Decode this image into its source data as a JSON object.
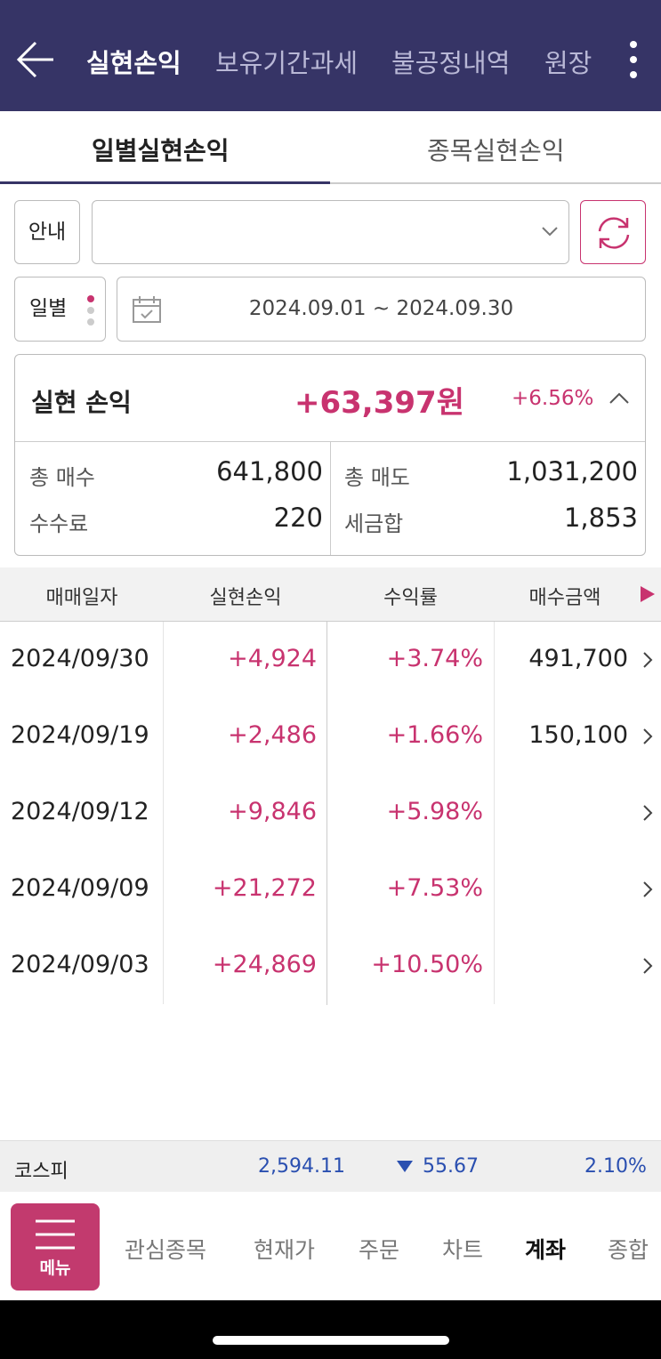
{
  "header": {
    "tabs": [
      "실현손익",
      "보유기간과세",
      "불공정내역",
      "원장"
    ]
  },
  "subtabs": [
    "일별실현손익",
    "종목실현손익"
  ],
  "controls": {
    "guide": "안내",
    "period_type": "일별",
    "date_range": "2024.09.01 ~ 2024.09.30"
  },
  "summary": {
    "label": "실현 손익",
    "amount": "+63,397원",
    "rate": "+6.56%",
    "items": [
      {
        "label": "총 매수",
        "value": "641,800"
      },
      {
        "label": "총 매도",
        "value": "1,031,200"
      },
      {
        "label": "수수료",
        "value": "220"
      },
      {
        "label": "세금합",
        "value": "1,853"
      }
    ]
  },
  "table": {
    "columns": [
      "매매일자",
      "실현손익",
      "수익률",
      "매수금액"
    ],
    "rows": [
      [
        "2024/09/30",
        "+4,924",
        "+3.74%",
        "491,700"
      ],
      [
        "2024/09/19",
        "+2,486",
        "+1.66%",
        "150,100"
      ],
      [
        "2024/09/12",
        "+9,846",
        "+5.98%"
      ],
      [
        "2024/09/09",
        "+21,272",
        "+7.53%"
      ],
      [
        "2024/09/03",
        "+24,869",
        "+10.50%"
      ]
    ]
  },
  "index": {
    "name": "코스피",
    "value": "2,594.11",
    "change": "55.67",
    "rate": "2.10%"
  },
  "nav": {
    "menu": "메뉴",
    "items": [
      "관심종목",
      "현재가",
      "주문",
      "차트",
      "계좌",
      "종합"
    ]
  }
}
